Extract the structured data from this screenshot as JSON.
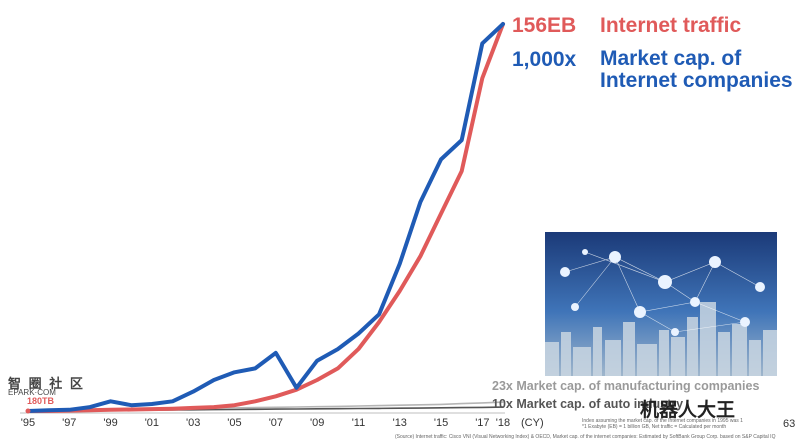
{
  "chart_data": {
    "type": "line",
    "title": "",
    "xlabel": "(CY)",
    "ylabel": "",
    "x": [
      1995,
      1996,
      1997,
      1998,
      1999,
      2000,
      2001,
      2002,
      2003,
      2004,
      2005,
      2006,
      2007,
      2008,
      2009,
      2010,
      2011,
      2012,
      2013,
      2014,
      2015,
      2016,
      2017,
      2018
    ],
    "x_tick_labels": [
      "'95",
      "'97",
      "'99",
      "'01",
      "'03",
      "'05",
      "'07",
      "'09",
      "'11",
      "'13",
      "'15",
      "'17",
      "'18"
    ],
    "x_tick_years": [
      1995,
      1997,
      1999,
      2001,
      2003,
      2005,
      2007,
      2009,
      2011,
      2013,
      2015,
      2017,
      2018
    ],
    "ylim": [
      0,
      1000
    ],
    "series": [
      {
        "name": "Internet traffic",
        "end_label": "156EB",
        "color": "#e05a5a",
        "values": [
          0,
          0,
          1,
          2,
          3,
          4,
          5,
          6,
          8,
          10,
          15,
          25,
          38,
          55,
          80,
          110,
          160,
          230,
          310,
          400,
          510,
          620,
          860,
          1000
        ]
      },
      {
        "name": "Market cap. of Internet companies",
        "end_label": "1,000x",
        "color": "#1f5bb5",
        "values": [
          0,
          2,
          3,
          10,
          25,
          15,
          18,
          25,
          50,
          80,
          100,
          110,
          150,
          60,
          130,
          160,
          200,
          250,
          380,
          540,
          650,
          700,
          950,
          1000
        ]
      },
      {
        "name": "Market cap. of manufacturing companies",
        "end_label": "23x",
        "color": "#b5b5b5",
        "values": [
          0,
          0.8,
          1.6,
          2.4,
          3.2,
          4,
          4.8,
          5.6,
          6.4,
          7.2,
          8,
          8.8,
          9.6,
          10.4,
          11.2,
          12,
          13,
          14,
          15,
          16,
          17,
          19,
          21,
          23
        ]
      },
      {
        "name": "Market cap. of auto industry",
        "end_label": "10x",
        "color": "#555555",
        "values": [
          0,
          0.4,
          0.8,
          1.2,
          1.6,
          2,
          2.4,
          2.8,
          3.2,
          3.6,
          4,
          4.4,
          4.8,
          5.2,
          5.6,
          6,
          6.4,
          6.8,
          7.2,
          7.6,
          8.2,
          8.8,
          9.4,
          10
        ]
      }
    ],
    "annotations": [
      "180TB"
    ],
    "grid": false,
    "legend": "end-labels"
  },
  "labels": {
    "traffic_value": "156EB",
    "traffic_name": "Internet traffic",
    "mcap_value": "1,000x",
    "mcap_name": "Market cap. of Internet companies",
    "start_value": "180TB",
    "mfg": "23x Market cap. of manufacturing companies",
    "auto": "10x Market cap. of auto industry",
    "unit": "(CY)",
    "page": "63"
  },
  "notes": {
    "index_note": "Index assuming the market cap. of the Internet companies in 1995 was 1",
    "eb_note": "*1 Exabyte (EB) = 1 billion GB, Net traffic = Calculated per month",
    "source": "(Source) Internet traffic: Cisco VNI (Visual Networking Index) & OECD, Market cap. of the internet companies: Estimated by SoftBank Group Corp. based on S&P Capital IQ"
  },
  "watermarks": {
    "left_top": "智 圈 社 区",
    "left_bottom": "EPARK·COM",
    "right": "机器人大王"
  },
  "colors": {
    "traffic": "#e05a5a",
    "mcap": "#1f5bb5",
    "mfg": "#b5b5b5",
    "auto": "#555555"
  }
}
